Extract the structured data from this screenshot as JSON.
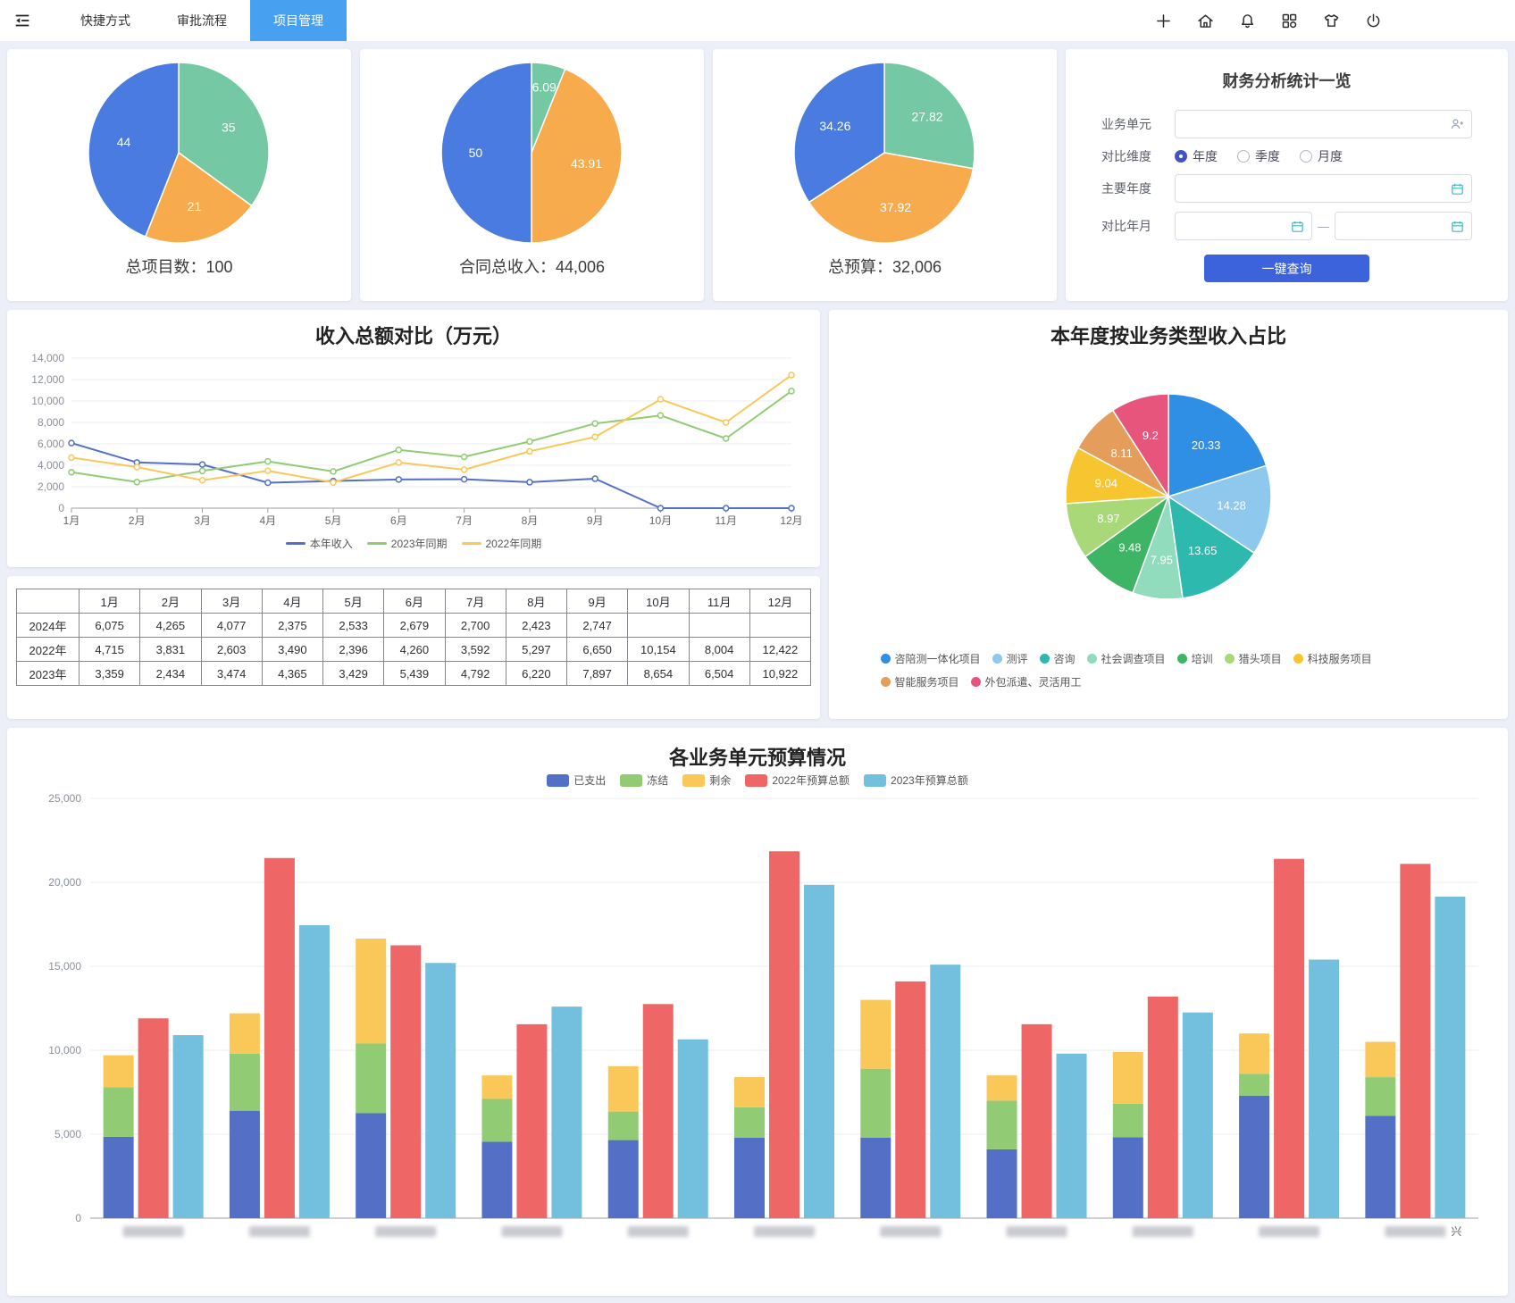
{
  "navbar": {
    "menu_icon": "menu-fold",
    "tabs": [
      {
        "label": "快捷方式",
        "active": false
      },
      {
        "label": "审批流程",
        "active": false
      },
      {
        "label": "项目管理",
        "active": true
      }
    ],
    "action_icons": [
      "plus",
      "home",
      "bell",
      "apps",
      "theme",
      "power"
    ]
  },
  "filter_panel": {
    "title": "财务分析统计一览",
    "fields": {
      "business_unit_label": "业务单元",
      "compare_dim_label": "对比维度",
      "radio_options": [
        {
          "label": "年度",
          "checked": true
        },
        {
          "label": "季度",
          "checked": false
        },
        {
          "label": "月度",
          "checked": false
        }
      ],
      "main_year_label": "主要年度",
      "compare_month_label": "对比年月",
      "range_separator": "—"
    },
    "query_button": "一键查询"
  },
  "income_table": {
    "header": [
      "",
      "1月",
      "2月",
      "3月",
      "4月",
      "5月",
      "6月",
      "7月",
      "8月",
      "9月",
      "10月",
      "11月",
      "12月"
    ],
    "rows": [
      {
        "label": "2024年",
        "values": [
          "6,075",
          "4,265",
          "4,077",
          "2,375",
          "2,533",
          "2,679",
          "2,700",
          "2,423",
          "2,747",
          "",
          "",
          ""
        ]
      },
      {
        "label": "2022年",
        "values": [
          "4,715",
          "3,831",
          "2,603",
          "3,490",
          "2,396",
          "4,260",
          "3,592",
          "5,297",
          "6,650",
          "10,154",
          "8,004",
          "12,422"
        ]
      },
      {
        "label": "2023年",
        "values": [
          "3,359",
          "2,434",
          "3,474",
          "4,365",
          "3,429",
          "5,439",
          "4,792",
          "6,220",
          "7,897",
          "8,654",
          "6,504",
          "10,922"
        ]
      }
    ]
  },
  "chart_data": [
    {
      "id": "total-projects-pie",
      "type": "pie",
      "caption": "总项目数：100",
      "slices": [
        {
          "label": "35",
          "value": 35,
          "color": "#74c8a3"
        },
        {
          "label": "21",
          "value": 21,
          "color": "#f8ab4c"
        },
        {
          "label": "44",
          "value": 44,
          "color": "#4a7be0"
        }
      ]
    },
    {
      "id": "contract-income-pie",
      "type": "pie",
      "caption": "合同总收入：44,006",
      "slices": [
        {
          "label": "6.09",
          "value": 6.09,
          "color": "#74c8a3",
          "labelR": 0.74
        },
        {
          "label": "43.91",
          "value": 43.91,
          "color": "#f8ab4c"
        },
        {
          "label": "50",
          "value": 50,
          "color": "#4a7be0"
        }
      ]
    },
    {
      "id": "total-budget-pie",
      "type": "pie",
      "caption": "总预算：32,006",
      "slices": [
        {
          "label": "27.82",
          "value": 27.82,
          "color": "#74c8a3"
        },
        {
          "label": "37.92",
          "value": 37.92,
          "color": "#f8ab4c"
        },
        {
          "label": "34.26",
          "value": 34.26,
          "color": "#4a7be0"
        }
      ]
    },
    {
      "id": "income-compare-line",
      "type": "line",
      "title": "收入总额对比（万元）",
      "x": [
        "1月",
        "2月",
        "3月",
        "4月",
        "5月",
        "6月",
        "7月",
        "8月",
        "9月",
        "10月",
        "11月",
        "12月"
      ],
      "ylim": [
        0,
        14000
      ],
      "ytick_step": 2000,
      "grid": true,
      "legend_position": "bottom",
      "series": [
        {
          "name": "本年收入",
          "color": "#5470c6",
          "values": [
            6075,
            4265,
            4077,
            2375,
            2533,
            2679,
            2700,
            2423,
            2747,
            0,
            0,
            0
          ]
        },
        {
          "name": "2023年同期",
          "color": "#91cc75",
          "values": [
            3359,
            2434,
            3474,
            4365,
            3429,
            5439,
            4792,
            6220,
            7897,
            8654,
            6504,
            10922
          ]
        },
        {
          "name": "2022年同期",
          "color": "#fac858",
          "values": [
            4715,
            3831,
            2603,
            3490,
            2396,
            4260,
            3592,
            5297,
            6650,
            10154,
            8004,
            12422
          ]
        }
      ]
    },
    {
      "id": "business-type-pie",
      "type": "pie",
      "title": "本年度按业务类型收入占比",
      "slices": [
        {
          "name": "咨陪测一体化项目",
          "label": "20.33",
          "value": 20.33,
          "color": "#2f8fe5"
        },
        {
          "name": "测评",
          "label": "14.28",
          "value": 14.28,
          "color": "#8ec8ec"
        },
        {
          "name": "咨询",
          "label": "13.65",
          "value": 13.65,
          "color": "#2db9ae"
        },
        {
          "name": "社会调查项目",
          "label": "7.95",
          "value": 7.95,
          "color": "#90dcbd"
        },
        {
          "name": "培训",
          "label": "9.48",
          "value": 9.48,
          "color": "#3eb564"
        },
        {
          "name": "猎头项目",
          "label": "8.97",
          "value": 8.97,
          "color": "#a8d878"
        },
        {
          "name": "科技服务项目",
          "label": "9.04",
          "value": 9.04,
          "color": "#f7c52f"
        },
        {
          "name": "智能服务项目",
          "label": "8.11",
          "value": 8.11,
          "color": "#e59d5c"
        },
        {
          "name": "外包派遣、灵活用工",
          "label": "9.2",
          "value": 9.2,
          "color": "#e7557c"
        }
      ]
    },
    {
      "id": "budget-bars",
      "type": "bar",
      "title": "各业务单元预算情况",
      "ylim": [
        0,
        25000
      ],
      "ytick_step": 5000,
      "grid": true,
      "x_labels_censored": true,
      "visible_label_fragment": "兴",
      "stack_series": [
        {
          "name": "已支出",
          "color": "#5470c6",
          "values": [
            4850,
            6400,
            6250,
            4550,
            4650,
            4800,
            4800,
            4100,
            4820,
            7300,
            6100
          ]
        },
        {
          "name": "冻结",
          "color": "#91cc75",
          "values": [
            2950,
            3400,
            4150,
            2550,
            1700,
            1800,
            4100,
            2900,
            2000,
            1300,
            2300
          ]
        },
        {
          "name": "剩余",
          "color": "#fac858",
          "values": [
            1900,
            2400,
            6250,
            1400,
            2700,
            1800,
            4100,
            1500,
            3080,
            2400,
            2100
          ]
        }
      ],
      "bar_series": [
        {
          "name": "2022年预算总额",
          "color": "#ee6666",
          "values": [
            11900,
            21450,
            16250,
            11550,
            12750,
            21850,
            14100,
            11550,
            13200,
            21400,
            21100
          ]
        },
        {
          "name": "2023年预算总额",
          "color": "#73c0de",
          "values": [
            10900,
            17450,
            15200,
            12600,
            10650,
            19850,
            15100,
            9800,
            12250,
            15400,
            19150
          ]
        }
      ]
    }
  ]
}
